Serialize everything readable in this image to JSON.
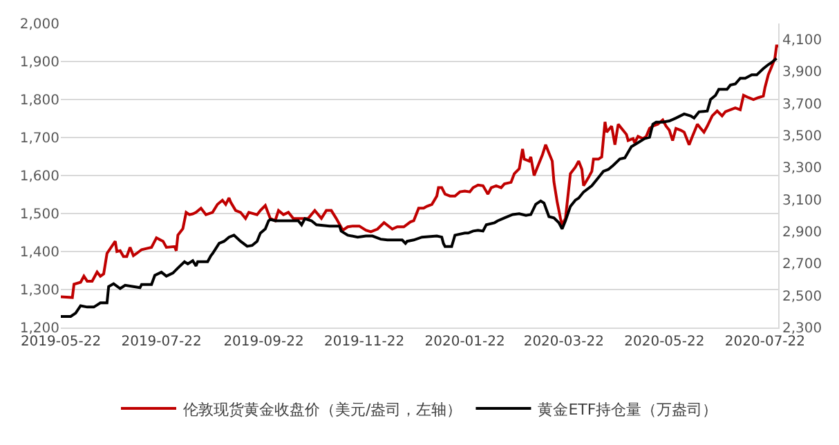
{
  "chart_data": {
    "type": "line",
    "legend": "bottom",
    "grid": "y",
    "line_style": "solid",
    "marker": "none",
    "xlim": [
      "2019-05-22",
      "2020-07-30"
    ],
    "xticks": [
      {
        "value": "2019-05-22",
        "label": "2019-05-22"
      },
      {
        "value": "2019-07-22",
        "label": "2019-07-22"
      },
      {
        "value": "2019-09-22",
        "label": "2019-09-22"
      },
      {
        "value": "2019-11-22",
        "label": "2019-11-22"
      },
      {
        "value": "2020-01-22",
        "label": "2020-01-22"
      },
      {
        "value": "2020-03-22",
        "label": "2020-03-22"
      },
      {
        "value": "2020-05-22",
        "label": "2020-05-22"
      },
      {
        "value": "2020-07-22",
        "label": "2020-07-22"
      }
    ],
    "ylim": [
      1200,
      2000
    ],
    "yticks": [
      {
        "value": 1200,
        "label": "1,200"
      },
      {
        "value": 1300,
        "label": "1,300"
      },
      {
        "value": 1400,
        "label": "1,400"
      },
      {
        "value": 1500,
        "label": "1,500"
      },
      {
        "value": 1600,
        "label": "1,600"
      },
      {
        "value": 1700,
        "label": "1,700"
      },
      {
        "value": 1800,
        "label": "1,800"
      },
      {
        "value": 1900,
        "label": "1,900"
      },
      {
        "value": 2000,
        "label": "2,000"
      }
    ],
    "y2lim": [
      2300,
      4200
    ],
    "y2ticks": [
      {
        "value": 2300,
        "label": "2,300"
      },
      {
        "value": 2500,
        "label": "2,500"
      },
      {
        "value": 2700,
        "label": "2,700"
      },
      {
        "value": 2900,
        "label": "2,900"
      },
      {
        "value": 3100,
        "label": "3,100"
      },
      {
        "value": 3300,
        "label": "3,300"
      },
      {
        "value": 3500,
        "label": "3,500"
      },
      {
        "value": 3700,
        "label": "3,700"
      },
      {
        "value": 3900,
        "label": "3,900"
      },
      {
        "value": 4100,
        "label": "4,100"
      }
    ],
    "series": [
      {
        "name": "伦敦现货黄金收盘价（美元/盎司，左轴）",
        "color": "#c00000",
        "x": [
          "2019-05-22",
          "2019-05-29",
          "2019-05-30",
          "2019-06-03",
          "2019-06-05",
          "2019-06-07",
          "2019-06-10",
          "2019-06-13",
          "2019-06-15",
          "2019-06-17",
          "2019-06-19",
          "2019-06-24",
          "2019-06-25",
          "2019-06-27",
          "2019-06-29",
          "2019-07-01",
          "2019-07-03",
          "2019-07-05",
          "2019-07-07",
          "2019-07-10",
          "2019-07-13",
          "2019-07-16",
          "2019-07-19",
          "2019-07-23",
          "2019-07-25",
          "2019-07-30",
          "2019-07-31",
          "2019-08-01",
          "2019-08-04",
          "2019-08-06",
          "2019-08-08",
          "2019-08-10",
          "2019-08-12",
          "2019-08-15",
          "2019-08-18",
          "2019-08-22",
          "2019-08-25",
          "2019-08-28",
          "2019-08-30",
          "2019-09-01",
          "2019-09-02",
          "2019-09-05",
          "2019-09-08",
          "2019-09-11",
          "2019-09-13",
          "2019-09-18",
          "2019-09-20",
          "2019-09-23",
          "2019-09-26",
          "2019-09-29",
          "2019-10-01",
          "2019-10-04",
          "2019-10-07",
          "2019-10-10",
          "2019-10-13",
          "2019-10-15",
          "2019-10-19",
          "2019-10-23",
          "2019-10-27",
          "2019-10-30",
          "2019-11-02",
          "2019-11-05",
          "2019-11-09",
          "2019-11-12",
          "2019-11-15",
          "2019-11-19",
          "2019-11-23",
          "2019-11-26",
          "2019-11-30",
          "2019-12-04",
          "2019-12-09",
          "2019-12-12",
          "2019-12-16",
          "2019-12-20",
          "2019-12-22",
          "2019-12-25",
          "2019-12-28",
          "2019-12-30",
          "2020-01-02",
          "2020-01-05",
          "2020-01-06",
          "2020-01-08",
          "2020-01-10",
          "2020-01-13",
          "2020-01-16",
          "2020-01-19",
          "2020-01-22",
          "2020-01-25",
          "2020-01-27",
          "2020-01-30",
          "2020-02-02",
          "2020-02-05",
          "2020-02-07",
          "2020-02-10",
          "2020-02-13",
          "2020-02-15",
          "2020-02-19",
          "2020-02-21",
          "2020-02-24",
          "2020-02-26",
          "2020-02-27",
          "2020-03-01",
          "2020-03-02",
          "2020-03-04",
          "2020-03-06",
          "2020-03-09",
          "2020-03-11",
          "2020-03-13",
          "2020-03-15",
          "2020-03-16",
          "2020-03-18",
          "2020-03-20",
          "2020-03-21",
          "2020-03-23",
          "2020-03-26",
          "2020-03-29",
          "2020-03-31",
          "2020-04-02",
          "2020-04-03",
          "2020-04-06",
          "2020-04-08",
          "2020-04-09",
          "2020-04-12",
          "2020-04-14",
          "2020-04-16",
          "2020-04-17",
          "2020-04-20",
          "2020-04-22",
          "2020-04-24",
          "2020-04-26",
          "2020-04-29",
          "2020-04-30",
          "2020-05-03",
          "2020-05-04",
          "2020-05-06",
          "2020-05-09",
          "2020-05-11",
          "2020-05-13",
          "2020-05-15",
          "2020-05-18",
          "2020-05-21",
          "2020-05-23",
          "2020-05-25",
          "2020-05-27",
          "2020-05-29",
          "2020-06-01",
          "2020-06-03",
          "2020-06-06",
          "2020-06-08",
          "2020-06-10",
          "2020-06-11",
          "2020-06-13",
          "2020-06-15",
          "2020-06-17",
          "2020-06-20",
          "2020-06-23",
          "2020-06-26",
          "2020-06-28",
          "2020-07-01",
          "2020-07-04",
          "2020-07-07",
          "2020-07-09",
          "2020-07-12",
          "2020-07-15",
          "2020-07-18",
          "2020-07-21",
          "2020-07-22",
          "2020-07-24",
          "2020-07-26",
          "2020-07-28",
          "2020-07-29",
          "2020-07-30"
        ],
        "values": [
          1281,
          1279,
          1314,
          1319,
          1335,
          1322,
          1322,
          1346,
          1335,
          1341,
          1395,
          1427,
          1400,
          1402,
          1387,
          1387,
          1411,
          1389,
          1395,
          1405,
          1408,
          1411,
          1436,
          1427,
          1411,
          1413,
          1402,
          1443,
          1460,
          1503,
          1497,
          1499,
          1503,
          1514,
          1497,
          1503,
          1524,
          1535,
          1524,
          1541,
          1530,
          1508,
          1503,
          1487,
          1503,
          1497,
          1508,
          1521,
          1487,
          1481,
          1508,
          1497,
          1503,
          1487,
          1487,
          1487,
          1487,
          1508,
          1487,
          1508,
          1508,
          1487,
          1456,
          1465,
          1467,
          1467,
          1456,
          1452,
          1459,
          1476,
          1459,
          1465,
          1465,
          1478,
          1481,
          1514,
          1514,
          1519,
          1524,
          1546,
          1568,
          1568,
          1551,
          1546,
          1546,
          1557,
          1559,
          1557,
          1568,
          1575,
          1573,
          1551,
          1568,
          1573,
          1568,
          1578,
          1582,
          1605,
          1618,
          1670,
          1643,
          1638,
          1649,
          1600,
          1622,
          1654,
          1681,
          1659,
          1638,
          1584,
          1530,
          1487,
          1470,
          1487,
          1605,
          1622,
          1638,
          1616,
          1573,
          1595,
          1611,
          1643,
          1643,
          1649,
          1741,
          1714,
          1730,
          1681,
          1735,
          1724,
          1708,
          1692,
          1697,
          1686,
          1703,
          1697,
          1703,
          1724,
          1730,
          1735,
          1746,
          1730,
          1719,
          1692,
          1724,
          1719,
          1714,
          1681,
          1703,
          1724,
          1735,
          1724,
          1714,
          1730,
          1757,
          1770,
          1757,
          1768,
          1773,
          1778,
          1773,
          1811,
          1805,
          1800,
          1805,
          1809,
          1832,
          1865,
          1886,
          1908,
          1941,
          1941
        ]
      },
      {
        "name": "黄金ETF持仓量（万盎司）",
        "color": "#000000",
        "axis": "y2",
        "x": [
          "2019-05-22",
          "2019-05-28",
          "2019-05-31",
          "2019-06-03",
          "2019-06-07",
          "2019-06-11",
          "2019-06-13",
          "2019-06-15",
          "2019-06-19",
          "2019-06-20",
          "2019-06-23",
          "2019-06-27",
          "2019-06-30",
          "2019-07-05",
          "2019-07-09",
          "2019-07-10",
          "2019-07-16",
          "2019-07-18",
          "2019-07-22",
          "2019-07-25",
          "2019-07-29",
          "2019-08-01",
          "2019-08-05",
          "2019-08-07",
          "2019-08-10",
          "2019-08-12",
          "2019-08-13",
          "2019-08-19",
          "2019-08-21",
          "2019-08-22",
          "2019-08-26",
          "2019-08-29",
          "2019-09-01",
          "2019-09-04",
          "2019-09-08",
          "2019-09-12",
          "2019-09-15",
          "2019-09-18",
          "2019-09-20",
          "2019-09-23",
          "2019-09-25",
          "2019-09-26",
          "2019-09-29",
          "2019-10-13",
          "2019-10-15",
          "2019-10-17",
          "2019-10-21",
          "2019-10-24",
          "2019-11-01",
          "2019-11-07",
          "2019-11-08",
          "2019-11-12",
          "2019-11-18",
          "2019-11-23",
          "2019-11-27",
          "2019-12-02",
          "2019-12-06",
          "2019-12-15",
          "2019-12-17",
          "2019-12-18",
          "2019-12-22",
          "2019-12-27",
          "2020-01-05",
          "2020-01-08",
          "2020-01-09",
          "2020-01-10",
          "2020-01-14",
          "2020-01-16",
          "2020-01-22",
          "2020-01-24",
          "2020-01-27",
          "2020-01-30",
          "2020-02-02",
          "2020-02-04",
          "2020-02-09",
          "2020-02-11",
          "2020-02-15",
          "2020-02-20",
          "2020-02-24",
          "2020-02-28",
          "2020-03-02",
          "2020-03-05",
          "2020-03-08",
          "2020-03-10",
          "2020-03-13",
          "2020-03-16",
          "2020-03-19",
          "2020-03-21",
          "2020-03-23",
          "2020-03-26",
          "2020-03-29",
          "2020-03-31",
          "2020-04-03",
          "2020-04-08",
          "2020-04-12",
          "2020-04-15",
          "2020-04-18",
          "2020-04-21",
          "2020-04-25",
          "2020-04-28",
          "2020-05-02",
          "2020-05-06",
          "2020-05-10",
          "2020-05-13",
          "2020-05-15",
          "2020-05-17",
          "2020-05-21",
          "2020-05-25",
          "2020-05-29",
          "2020-06-03",
          "2020-06-07",
          "2020-06-09",
          "2020-06-12",
          "2020-06-17",
          "2020-06-19",
          "2020-06-22",
          "2020-06-24",
          "2020-06-29",
          "2020-07-01",
          "2020-07-04",
          "2020-07-07",
          "2020-07-10",
          "2020-07-14",
          "2020-07-17",
          "2020-07-21",
          "2020-07-24",
          "2020-07-26",
          "2020-07-29"
        ],
        "values": [
          2369,
          2369,
          2390,
          2436,
          2428,
          2428,
          2441,
          2454,
          2454,
          2556,
          2574,
          2544,
          2564,
          2556,
          2549,
          2569,
          2569,
          2626,
          2646,
          2621,
          2641,
          2672,
          2711,
          2698,
          2718,
          2685,
          2711,
          2711,
          2749,
          2762,
          2826,
          2839,
          2865,
          2877,
          2839,
          2808,
          2813,
          2839,
          2890,
          2916,
          2967,
          2975,
          2967,
          2967,
          2942,
          2980,
          2967,
          2942,
          2934,
          2934,
          2903,
          2877,
          2865,
          2872,
          2872,
          2852,
          2847,
          2847,
          2826,
          2839,
          2847,
          2865,
          2872,
          2865,
          2826,
          2806,
          2806,
          2877,
          2890,
          2890,
          2903,
          2908,
          2903,
          2942,
          2955,
          2967,
          2985,
          3006,
          3011,
          3001,
          3006,
          3070,
          3091,
          3078,
          2993,
          2985,
          2955,
          2916,
          2967,
          3057,
          3096,
          3109,
          3147,
          3186,
          3237,
          3276,
          3288,
          3314,
          3353,
          3360,
          3430,
          3455,
          3481,
          3489,
          3571,
          3584,
          3584,
          3591,
          3609,
          3635,
          3622,
          3609,
          3648,
          3653,
          3725,
          3751,
          3789,
          3789,
          3815,
          3822,
          3858,
          3858,
          3879,
          3879,
          3918,
          3943,
          3956,
          3982
        ]
      }
    ]
  }
}
